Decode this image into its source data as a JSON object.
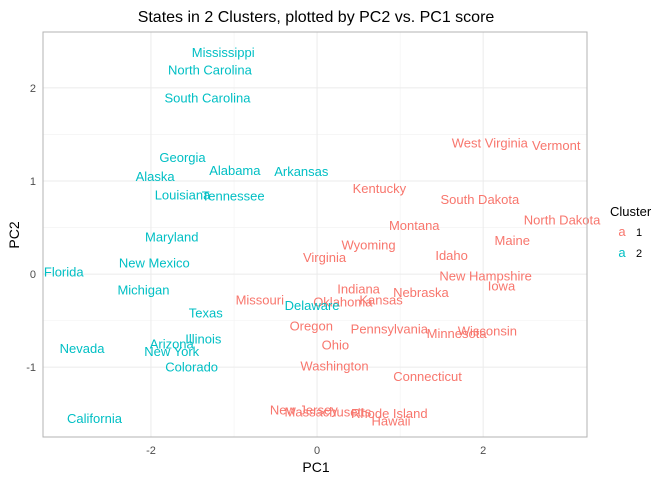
{
  "chart_data": {
    "type": "scatter",
    "title": "States in 2 Clusters, plotted by PC2 vs. PC1 score",
    "xlabel": "PC1",
    "ylabel": "PC2",
    "xlim": [
      -3.3,
      3.25
    ],
    "ylim": [
      -1.75,
      2.6
    ],
    "xticks": [
      -2,
      0,
      2
    ],
    "yticks": [
      -1,
      0,
      1,
      2
    ],
    "grid": true,
    "legend": {
      "title": "Cluster",
      "position": "right",
      "entries": [
        {
          "key": "a",
          "label": "1",
          "color": "#F8766D"
        },
        {
          "key": "a",
          "label": "2",
          "color": "#00BFC4"
        }
      ]
    },
    "series": [
      {
        "cluster": "1",
        "color": "#F8766D",
        "points": [
          {
            "label": "West Virginia",
            "x": 2.08,
            "y": 1.41
          },
          {
            "label": "Vermont",
            "x": 2.88,
            "y": 1.38
          },
          {
            "label": "Kentucky",
            "x": 0.75,
            "y": 0.92
          },
          {
            "label": "South Dakota",
            "x": 1.96,
            "y": 0.8
          },
          {
            "label": "North Dakota",
            "x": 2.95,
            "y": 0.58
          },
          {
            "label": "Montana",
            "x": 1.17,
            "y": 0.52
          },
          {
            "label": "Maine",
            "x": 2.35,
            "y": 0.36
          },
          {
            "label": "Wyoming",
            "x": 0.62,
            "y": 0.31
          },
          {
            "label": "Virginia",
            "x": 0.09,
            "y": 0.18
          },
          {
            "label": "Idaho",
            "x": 1.62,
            "y": 0.2
          },
          {
            "label": "New Hampshire",
            "x": 2.03,
            "y": -0.02
          },
          {
            "label": "Iowa",
            "x": 2.22,
            "y": -0.13
          },
          {
            "label": "Indiana",
            "x": 0.5,
            "y": -0.16
          },
          {
            "label": "Nebraska",
            "x": 1.25,
            "y": -0.2
          },
          {
            "label": "Missouri",
            "x": -0.69,
            "y": -0.28
          },
          {
            "label": "Oklahoma",
            "x": 0.31,
            "y": -0.3
          },
          {
            "label": "Kansas",
            "x": 0.77,
            "y": -0.28
          },
          {
            "label": "Oregon",
            "x": -0.07,
            "y": -0.56
          },
          {
            "label": "Pennsylvania",
            "x": 0.87,
            "y": -0.59
          },
          {
            "label": "Minnesota",
            "x": 1.68,
            "y": -0.64
          },
          {
            "label": "Wisconsin",
            "x": 2.05,
            "y": -0.61
          },
          {
            "label": "Ohio",
            "x": 0.22,
            "y": -0.76
          },
          {
            "label": "Washington",
            "x": 0.21,
            "y": -0.99
          },
          {
            "label": "Connecticut",
            "x": 1.33,
            "y": -1.1
          },
          {
            "label": "New Jersey",
            "x": -0.16,
            "y": -1.46
          },
          {
            "label": "Massachusetts",
            "x": 0.13,
            "y": -1.48
          },
          {
            "label": "Rhode Island",
            "x": 0.87,
            "y": -1.5
          },
          {
            "label": "Hawaii",
            "x": 0.89,
            "y": -1.58
          }
        ]
      },
      {
        "cluster": "2",
        "color": "#00BFC4",
        "points": [
          {
            "label": "Mississippi",
            "x": -1.13,
            "y": 2.38
          },
          {
            "label": "North Carolina",
            "x": -1.29,
            "y": 2.19
          },
          {
            "label": "South Carolina",
            "x": -1.32,
            "y": 1.89
          },
          {
            "label": "Georgia",
            "x": -1.62,
            "y": 1.25
          },
          {
            "label": "Alabama",
            "x": -0.99,
            "y": 1.11
          },
          {
            "label": "Arkansas",
            "x": -0.19,
            "y": 1.1
          },
          {
            "label": "Alaska",
            "x": -1.95,
            "y": 1.05
          },
          {
            "label": "Louisiana",
            "x": -1.62,
            "y": 0.85
          },
          {
            "label": "Tennessee",
            "x": -1.01,
            "y": 0.84
          },
          {
            "label": "Maryland",
            "x": -1.75,
            "y": 0.4
          },
          {
            "label": "New Mexico",
            "x": -1.96,
            "y": 0.12
          },
          {
            "label": "Florida",
            "x": -3.05,
            "y": 0.02
          },
          {
            "label": "Michigan",
            "x": -2.09,
            "y": -0.17
          },
          {
            "label": "Delaware",
            "x": -0.06,
            "y": -0.34
          },
          {
            "label": "Texas",
            "x": -1.34,
            "y": -0.42
          },
          {
            "label": "Illinois",
            "x": -1.37,
            "y": -0.7
          },
          {
            "label": "Arizona",
            "x": -1.75,
            "y": -0.75
          },
          {
            "label": "New York",
            "x": -1.75,
            "y": -0.83
          },
          {
            "label": "Nevada",
            "x": -2.83,
            "y": -0.8
          },
          {
            "label": "Colorado",
            "x": -1.51,
            "y": -1.0
          },
          {
            "label": "California",
            "x": -2.68,
            "y": -1.55
          }
        ]
      }
    ]
  }
}
